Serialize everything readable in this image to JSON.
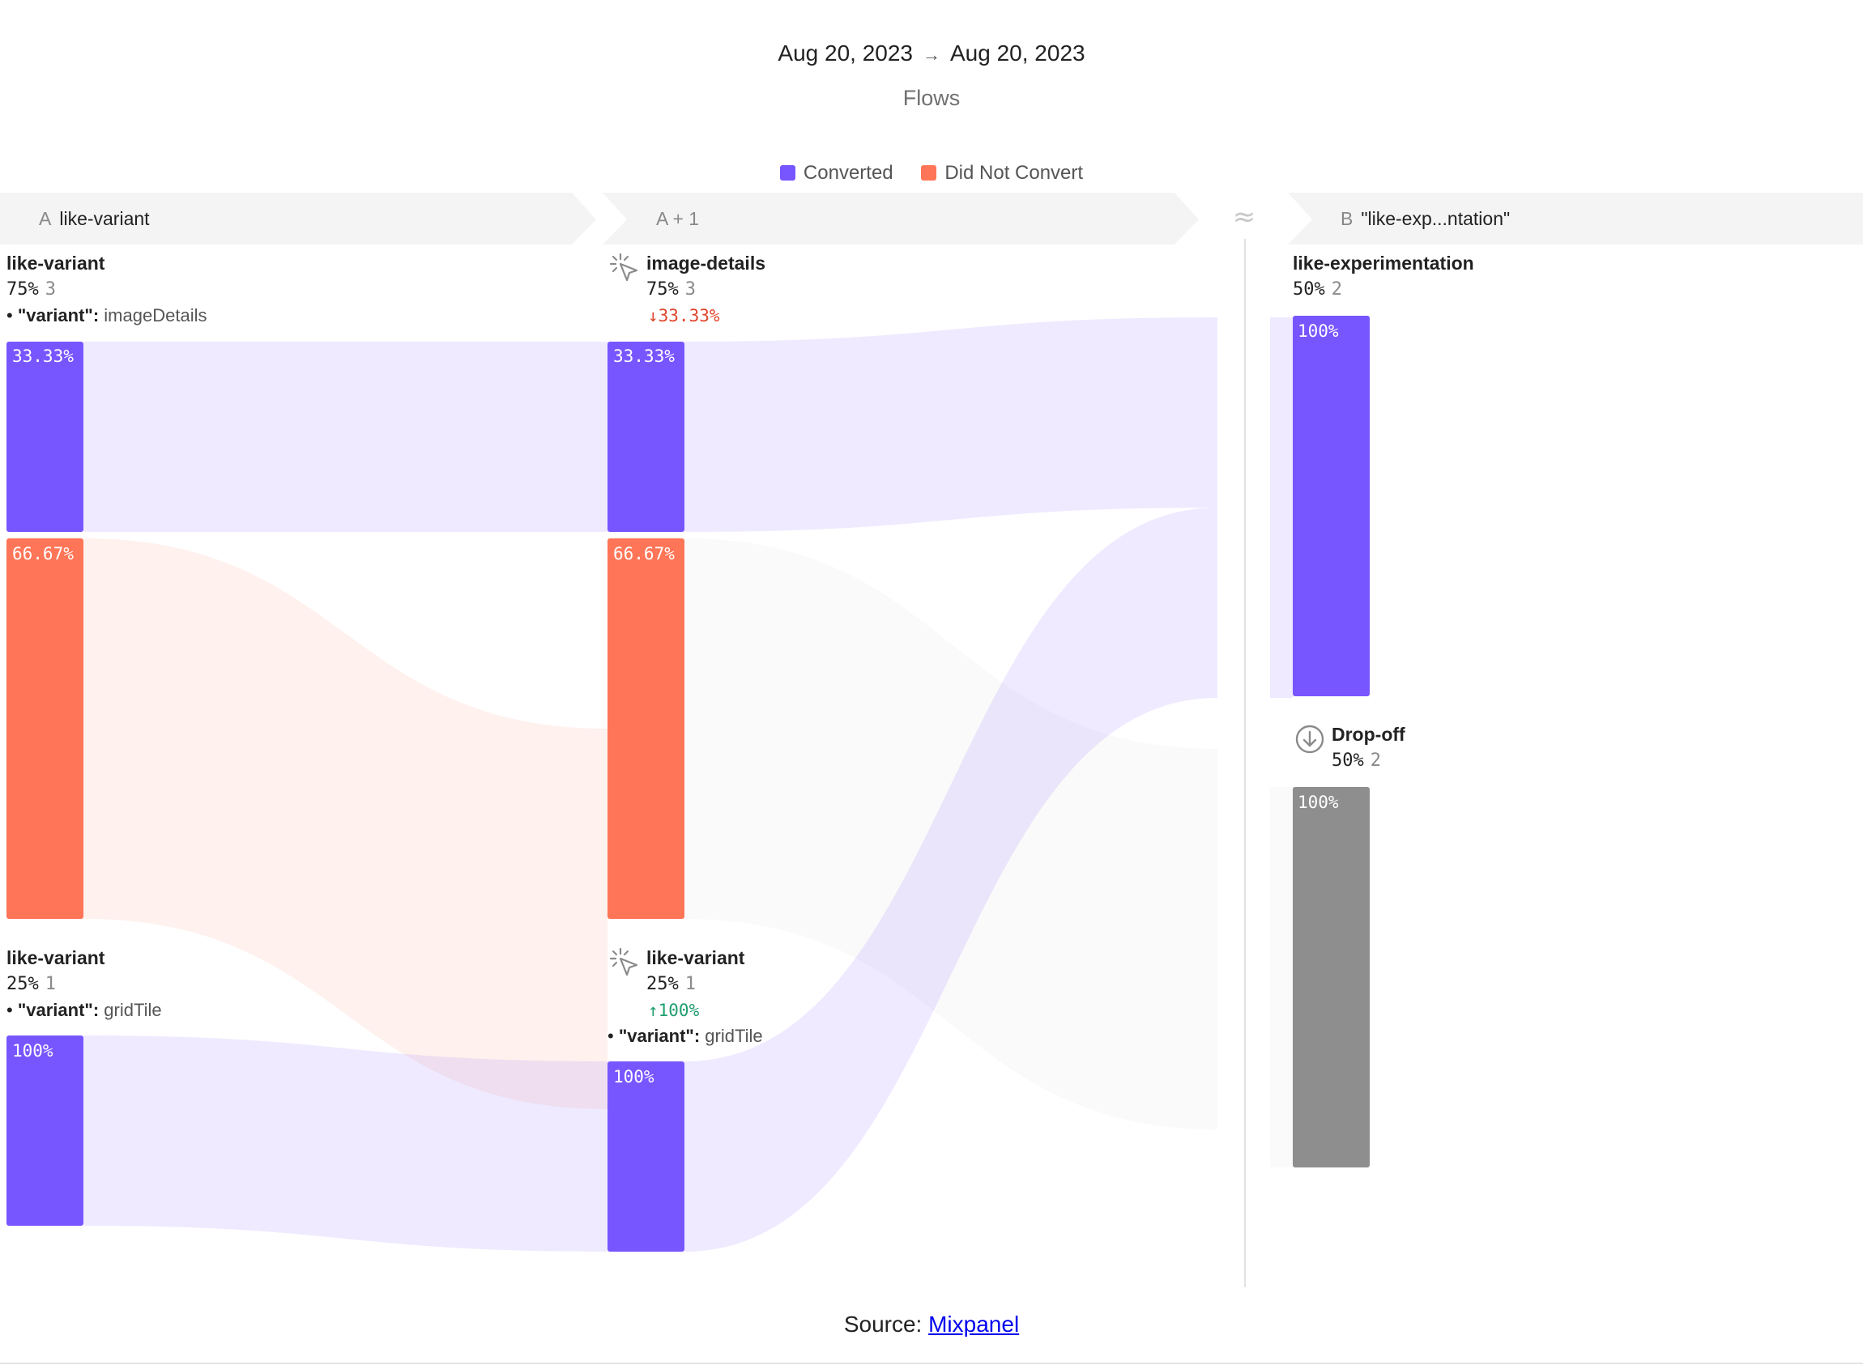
{
  "header": {
    "date_start": "Aug 20, 2023",
    "arrow": "→",
    "date_end": "Aug 20, 2023",
    "subtitle": "Flows"
  },
  "legend": [
    {
      "label": "Converted",
      "color": "#7856ff"
    },
    {
      "label": "Did Not Convert",
      "color": "#ff7557"
    }
  ],
  "colors": {
    "converted": "#7856ff",
    "not_converted": "#ff7557",
    "dropoff": "#8e8e8e",
    "step_header_bg": "#f4f4f4"
  },
  "steps": [
    {
      "letter": "A",
      "label": "like-variant"
    },
    {
      "letter": "A + 1",
      "label": ""
    },
    {
      "letter": "B",
      "label": "\"like-exp...ntation\""
    }
  ],
  "gap_symbol": "≈",
  "source": {
    "prefix": "Source: ",
    "link_text": "Mixpanel"
  },
  "chart_data": {
    "type": "sankey",
    "title": "Flows",
    "date_range": [
      "Aug 20, 2023",
      "Aug 20, 2023"
    ],
    "nodes": [
      {
        "id": "a1",
        "step": "A",
        "title": "like-variant",
        "pct": "75%",
        "count": "3",
        "prop_key": "\"variant\":",
        "prop_value": "imageDetails",
        "segments": [
          {
            "kind": "converted",
            "label": "33.33%",
            "value": 33.33
          },
          {
            "kind": "not_converted",
            "label": "66.67%",
            "value": 66.67
          }
        ]
      },
      {
        "id": "a2",
        "step": "A",
        "title": "like-variant",
        "pct": "25%",
        "count": "1",
        "prop_key": "\"variant\":",
        "prop_value": "gridTile",
        "segments": [
          {
            "kind": "converted",
            "label": "100%",
            "value": 100
          }
        ]
      },
      {
        "id": "b1",
        "step": "A + 1",
        "icon": "cursor-click-icon",
        "title": "image-details",
        "pct": "75%",
        "count": "3",
        "delta": "↓33.33%",
        "delta_dir": "down",
        "segments": [
          {
            "kind": "converted",
            "label": "33.33%",
            "value": 33.33
          },
          {
            "kind": "not_converted",
            "label": "66.67%",
            "value": 66.67
          }
        ]
      },
      {
        "id": "b2",
        "step": "A + 1",
        "icon": "cursor-click-icon",
        "title": "like-variant",
        "pct": "25%",
        "count": "1",
        "delta": "↑100%",
        "delta_dir": "up",
        "prop_key": "\"variant\":",
        "prop_value": "gridTile",
        "segments": [
          {
            "kind": "converted",
            "label": "100%",
            "value": 100
          }
        ]
      },
      {
        "id": "c1",
        "step": "B",
        "title": "like-experimentation",
        "pct": "50%",
        "count": "2",
        "segments": [
          {
            "kind": "converted",
            "label": "100%",
            "value": 100
          }
        ]
      },
      {
        "id": "c2",
        "step": "B",
        "icon": "drop-off-icon",
        "title": "Drop-off",
        "pct": "50%",
        "count": "2",
        "segments": [
          {
            "kind": "dropoff",
            "label": "100%",
            "value": 100
          }
        ]
      }
    ],
    "links": [
      {
        "from": "a1",
        "to": "b1",
        "kind": "converted",
        "value": 1
      },
      {
        "from": "a1",
        "to": "b1",
        "kind": "not_converted",
        "value": 2
      },
      {
        "from": "a2",
        "to": "b2",
        "kind": "converted",
        "value": 1
      },
      {
        "from": "b1",
        "to": "c1",
        "kind": "converted",
        "value": 1
      },
      {
        "from": "b1",
        "to": "c2",
        "kind": "not_converted",
        "value": 2
      },
      {
        "from": "b2",
        "to": "c1",
        "kind": "converted",
        "value": 1
      }
    ]
  }
}
